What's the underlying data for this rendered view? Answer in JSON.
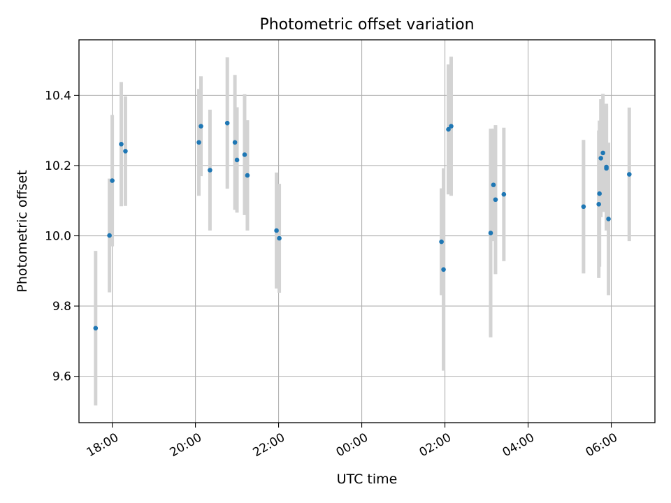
{
  "chart_data": {
    "type": "scatter",
    "title": "Photometric offset variation",
    "xlabel": "UTC time",
    "ylabel": "Photometric offset",
    "xlim": [
      "17:12",
      "31:03"
    ],
    "ylim": [
      9.468,
      10.558
    ],
    "x_ticks": [
      "18:00",
      "20:00",
      "22:00",
      "00:00",
      "02:00",
      "04:00",
      "06:00"
    ],
    "y_ticks": [
      "9.6",
      "9.8",
      "10.0",
      "10.2",
      "10.4"
    ],
    "grid": true,
    "legend": "none",
    "colors": {
      "marker": "#1f77b4",
      "errorbar": "#d3d3d3",
      "grid": "#b0b0b0"
    },
    "series": [
      {
        "points": [
          {
            "x": "17:36",
            "y": 9.737,
            "err": 0.22
          },
          {
            "x": "17:56",
            "y": 10.001,
            "err": 0.162
          },
          {
            "x": "18:00",
            "y": 10.157,
            "err": 0.187
          },
          {
            "x": "18:13",
            "y": 10.261,
            "err": 0.177
          },
          {
            "x": "18:19",
            "y": 10.241,
            "err": 0.156
          },
          {
            "x": "20:05",
            "y": 10.266,
            "err": 0.152
          },
          {
            "x": "20:08",
            "y": 10.312,
            "err": 0.142
          },
          {
            "x": "20:21",
            "y": 10.187,
            "err": 0.172
          },
          {
            "x": "20:46",
            "y": 10.321,
            "err": 0.187
          },
          {
            "x": "20:57",
            "y": 10.266,
            "err": 0.192
          },
          {
            "x": "21:00",
            "y": 10.216,
            "err": 0.15
          },
          {
            "x": "21:11",
            "y": 10.231,
            "err": 0.172
          },
          {
            "x": "21:15",
            "y": 10.172,
            "err": 0.157
          },
          {
            "x": "21:57",
            "y": 10.015,
            "err": 0.165
          },
          {
            "x": "22:01",
            "y": 9.993,
            "err": 0.155
          },
          {
            "x": "01:55",
            "y": 9.983,
            "err": 0.152
          },
          {
            "x": "01:58",
            "y": 9.904,
            "err": 0.288
          },
          {
            "x": "02:05",
            "y": 10.303,
            "err": 0.185
          },
          {
            "x": "02:09",
            "y": 10.312,
            "err": 0.198
          },
          {
            "x": "03:06",
            "y": 10.008,
            "err": 0.297
          },
          {
            "x": "03:10",
            "y": 10.145,
            "err": 0.16
          },
          {
            "x": "03:13",
            "y": 10.103,
            "err": 0.212
          },
          {
            "x": "03:25",
            "y": 10.118,
            "err": 0.19
          },
          {
            "x": "05:20",
            "y": 10.083,
            "err": 0.19
          },
          {
            "x": "05:42",
            "y": 10.09,
            "err": 0.21
          },
          {
            "x": "05:43",
            "y": 10.12,
            "err": 0.208
          },
          {
            "x": "05:45",
            "y": 10.221,
            "err": 0.168
          },
          {
            "x": "05:48",
            "y": 10.236,
            "err": 0.168
          },
          {
            "x": "05:53",
            "y": 10.196,
            "err": 0.18
          },
          {
            "x": "05:53",
            "y": 10.192,
            "err": 0.177
          },
          {
            "x": "05:56",
            "y": 10.048,
            "err": 0.217
          },
          {
            "x": "06:26",
            "y": 10.175,
            "err": 0.19
          }
        ]
      }
    ]
  }
}
